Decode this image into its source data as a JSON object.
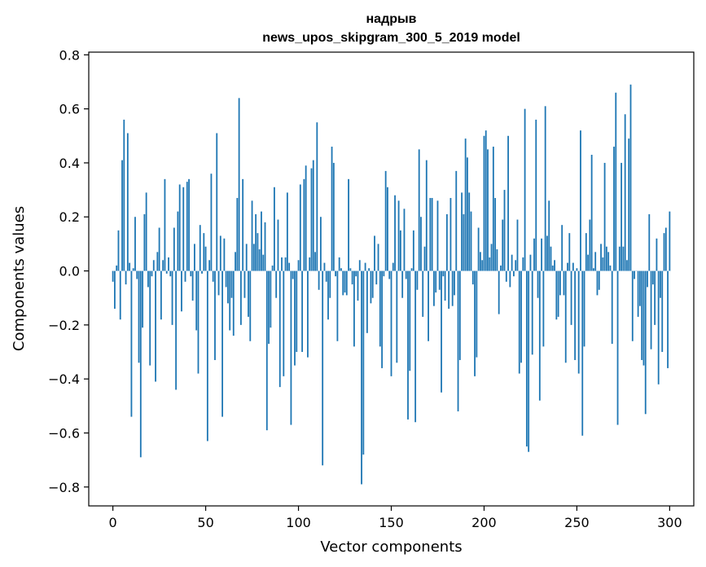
{
  "chart_data": {
    "type": "bar",
    "title": "надрыв",
    "subtitle": "news_upos_skipgram_300_5_2019 model",
    "xlabel": "Vector components",
    "ylabel": "Components values",
    "xlim": [
      -13,
      313
    ],
    "ylim": [
      -0.87,
      0.81
    ],
    "x_ticks": [
      0,
      50,
      100,
      150,
      200,
      250,
      300
    ],
    "x_tick_labels": [
      "0",
      "50",
      "100",
      "150",
      "200",
      "250",
      "300"
    ],
    "y_ticks": [
      -0.8,
      -0.6,
      -0.4,
      -0.2,
      0.0,
      0.2,
      0.4,
      0.6,
      0.8
    ],
    "y_tick_labels": [
      "−0.8",
      "−0.6",
      "−0.4",
      "−0.2",
      "0.0",
      "0.2",
      "0.4",
      "0.6",
      "0.8"
    ],
    "bar_color": "#1f77b4",
    "grid": false,
    "legend": "none",
    "series": [
      {
        "name": "надрыв",
        "values": [
          -0.04,
          -0.14,
          0.02,
          0.15,
          -0.18,
          0.41,
          0.56,
          -0.05,
          0.51,
          0.03,
          -0.54,
          0.01,
          0.2,
          -0.03,
          -0.34,
          -0.69,
          -0.21,
          0.21,
          0.29,
          -0.06,
          -0.35,
          -0.02,
          0.04,
          -0.41,
          0.07,
          0.16,
          -0.18,
          0.04,
          0.34,
          -0.01,
          0.05,
          -0.02,
          -0.2,
          0.16,
          -0.44,
          0.22,
          0.32,
          -0.15,
          0.31,
          -0.04,
          0.33,
          0.34,
          -0.02,
          -0.11,
          0.1,
          -0.22,
          -0.38,
          0.17,
          -0.01,
          0.14,
          0.09,
          -0.63,
          0.04,
          0.36,
          -0.04,
          -0.33,
          0.51,
          -0.09,
          0.13,
          -0.54,
          0.12,
          -0.06,
          -0.12,
          -0.22,
          -0.1,
          -0.24,
          0.07,
          0.27,
          0.64,
          -0.2,
          0.34,
          -0.1,
          0.1,
          -0.17,
          -0.26,
          0.26,
          0.1,
          0.21,
          0.14,
          0.08,
          0.22,
          0.06,
          0.18,
          -0.59,
          -0.27,
          -0.21,
          0.02,
          0.31,
          -0.1,
          0.19,
          -0.43,
          0.05,
          -0.39,
          0.05,
          0.29,
          0.03,
          -0.57,
          -0.03,
          -0.35,
          -0.3,
          0.04,
          0.32,
          -0.3,
          0.34,
          0.39,
          -0.32,
          0.05,
          0.38,
          0.41,
          0.07,
          0.55,
          -0.07,
          0.2,
          -0.72,
          0.03,
          -0.04,
          -0.18,
          -0.1,
          0.46,
          0.4,
          -0.02,
          -0.26,
          0.05,
          0.01,
          -0.09,
          -0.08,
          -0.09,
          0.34,
          0.01,
          -0.05,
          -0.28,
          -0.02,
          -0.11,
          0.04,
          -0.79,
          -0.68,
          0.03,
          -0.23,
          0.01,
          -0.12,
          -0.1,
          0.13,
          -0.05,
          0.1,
          -0.28,
          -0.36,
          -0.02,
          0.37,
          0.31,
          -0.03,
          -0.39,
          0.03,
          0.28,
          -0.34,
          0.26,
          0.15,
          -0.1,
          0.23,
          -0.03,
          -0.55,
          -0.37,
          0.01,
          0.15,
          -0.56,
          -0.07,
          0.45,
          0.2,
          -0.17,
          0.09,
          0.41,
          -0.26,
          0.27,
          0.27,
          -0.13,
          -0.08,
          0.26,
          -0.07,
          -0.45,
          -0.02,
          -0.11,
          0.21,
          -0.14,
          0.27,
          -0.13,
          -0.09,
          0.37,
          -0.52,
          -0.33,
          0.29,
          0.21,
          0.49,
          0.42,
          0.29,
          0.22,
          -0.05,
          -0.39,
          -0.32,
          0.16,
          0.07,
          0.04,
          0.5,
          0.52,
          0.45,
          0.05,
          0.1,
          0.46,
          0.27,
          0.08,
          -0.16,
          0.02,
          0.19,
          0.3,
          -0.04,
          0.5,
          -0.06,
          0.06,
          -0.02,
          0.04,
          0.19,
          -0.38,
          -0.34,
          0.05,
          0.6,
          -0.65,
          -0.67,
          0.06,
          -0.31,
          0.12,
          0.56,
          -0.1,
          -0.48,
          0.12,
          -0.28,
          0.61,
          0.13,
          0.26,
          0.09,
          0.02,
          0.04,
          -0.18,
          -0.17,
          -0.09,
          0.17,
          -0.09,
          -0.34,
          0.03,
          0.14,
          -0.2,
          0.03,
          -0.33,
          0.01,
          -0.38,
          0.52,
          -0.61,
          -0.28,
          0.14,
          0.06,
          0.19,
          0.43,
          0.01,
          0.07,
          -0.09,
          -0.07,
          0.1,
          0.05,
          0.4,
          0.09,
          0.07,
          0.02,
          -0.27,
          0.46,
          0.66,
          -0.57,
          0.09,
          0.4,
          0.09,
          0.58,
          0.04,
          0.49,
          0.69,
          -0.26,
          -0.03,
          0.0,
          -0.17,
          -0.13,
          -0.33,
          -0.35,
          -0.53,
          -0.06,
          0.21,
          -0.29,
          -0.05,
          -0.2,
          0.12,
          -0.42,
          -0.1,
          -0.3,
          0.14,
          0.16,
          -0.36,
          0.22
        ]
      }
    ]
  }
}
